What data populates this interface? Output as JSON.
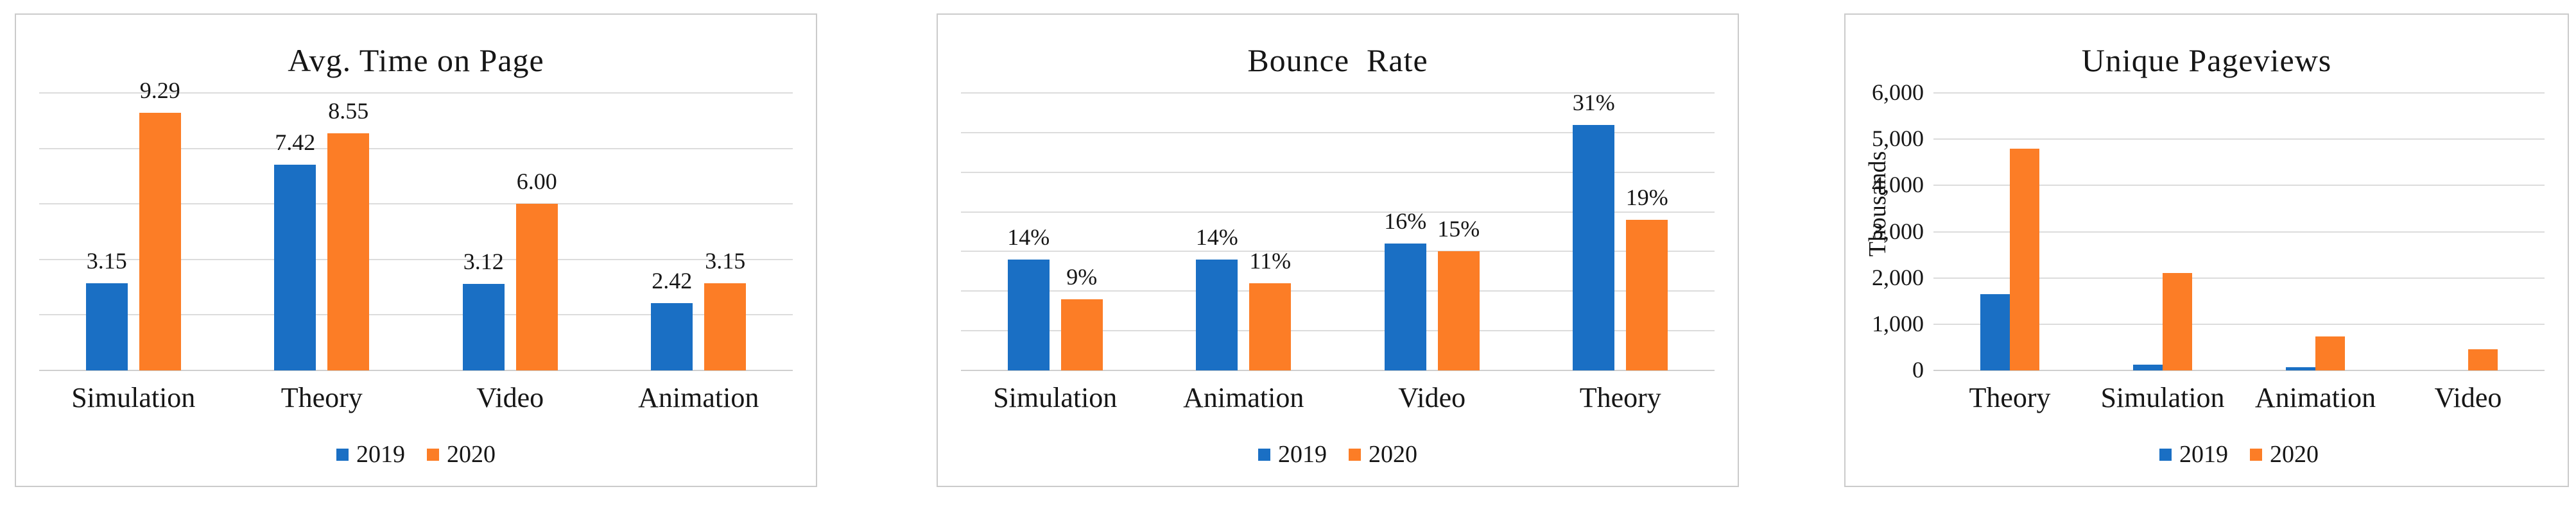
{
  "colors": {
    "series_2019": "#1a6fc4",
    "series_2020": "#fc7d26",
    "gridline": "#dcdcdc",
    "axis_line": "#cfcfcf",
    "panel_border": "#cbcbcb",
    "text": "#161616",
    "background": "#ffffff"
  },
  "chart_data": [
    {
      "type": "bar",
      "title": "Avg. Time on Page",
      "categories": [
        "Simulation",
        "Theory",
        "Video",
        "Animation"
      ],
      "series": [
        {
          "name": "2019",
          "values": [
            3.15,
            7.42,
            3.12,
            2.42
          ]
        },
        {
          "name": "2020",
          "values": [
            9.29,
            8.55,
            6.0,
            3.15
          ]
        }
      ],
      "data_labels": [
        [
          "3.15",
          "7.42",
          "3.12",
          "2.42"
        ],
        [
          "9.29",
          "8.55",
          "6.00",
          "3.15"
        ]
      ],
      "xlabel": "",
      "ylabel": "",
      "ylim": [
        0,
        10
      ],
      "grid_step": 2,
      "grid": true,
      "y_tick_labels": [],
      "legend_position": "bottom",
      "legend_labels": [
        "2019",
        "2020"
      ]
    },
    {
      "type": "bar",
      "title": "Bounce  Rate",
      "categories": [
        "Simulation",
        "Animation",
        "Video",
        "Theory"
      ],
      "series": [
        {
          "name": "2019",
          "values": [
            14,
            14,
            16,
            31
          ]
        },
        {
          "name": "2020",
          "values": [
            9,
            11,
            15,
            19
          ]
        }
      ],
      "data_labels": [
        [
          "14%",
          "14%",
          "16%",
          "31%"
        ],
        [
          "9%",
          "11%",
          "15%",
          "19%"
        ]
      ],
      "xlabel": "",
      "ylabel": "",
      "ylim": [
        0,
        35
      ],
      "grid_step": 5,
      "grid": true,
      "y_tick_labels": [],
      "legend_position": "bottom",
      "legend_labels": [
        "2019",
        "2020"
      ]
    },
    {
      "type": "bar",
      "title": "Unique Pageviews",
      "categories": [
        "Theory",
        "Simulation",
        "Animation",
        "Video"
      ],
      "series": [
        {
          "name": "2019",
          "values": [
            1650,
            120,
            70,
            0
          ]
        },
        {
          "name": "2020",
          "values": [
            4800,
            2100,
            730,
            460
          ]
        }
      ],
      "data_labels": null,
      "xlabel": "",
      "ylabel": "Thousands",
      "ylim": [
        0,
        6000
      ],
      "grid_step": 1000,
      "grid": true,
      "y_tick_labels": [
        "0",
        "1,000",
        "2,000",
        "3,000",
        "4,000",
        "5,000",
        "6,000"
      ],
      "legend_position": "bottom",
      "legend_labels": [
        "2019",
        "2020"
      ]
    }
  ]
}
